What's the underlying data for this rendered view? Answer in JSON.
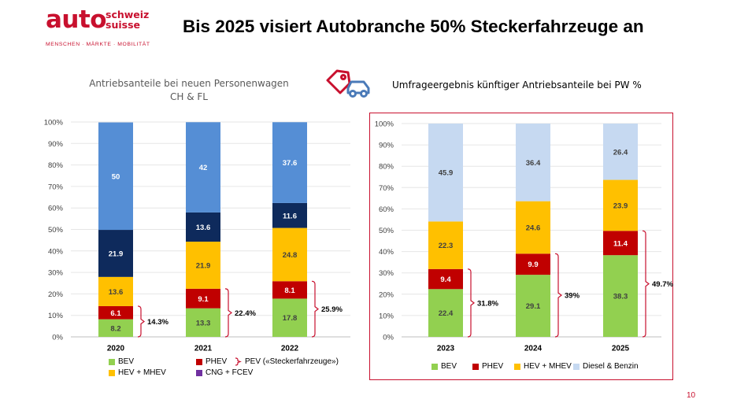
{
  "header": {
    "logo_main": "auto",
    "logo_line1": "schweiz",
    "logo_line2": "suisse",
    "logo_tagline": "MENSCHEN · MÄRKTE · MOBILITÄT",
    "title": "Bis 2025 visiert Autobranche 50% Steckerfahrzeuge an"
  },
  "left_chart_title_line1": "Antriebsanteile bei neuen Personenwagen",
  "left_chart_title_line2": "CH & FL",
  "right_chart_title": "Umfrageergebnis künftiger Antriebsanteile bei PW %",
  "page_number": "10",
  "colors": {
    "BEV": "#92d050",
    "PHEV": "#c00000",
    "HEV + MHEV": "#ffc000",
    "CNG + FCEV": "#7030a0",
    "Diesel & Benzin left": "#558ed5",
    "Diesel & Benzin right": "#c6d9f1",
    "dark_segment": "#0e2a5c",
    "bracket": "#c8102e",
    "frame": "#c8102e"
  },
  "icon": "tag-car-icon",
  "chart_data": [
    {
      "type": "bar",
      "stacked": true,
      "categories": [
        "2020",
        "2021",
        "2022"
      ],
      "series": [
        {
          "name": "BEV",
          "values": [
            8.2,
            13.3,
            17.8
          ]
        },
        {
          "name": "PHEV",
          "values": [
            6.1,
            9.1,
            8.1
          ]
        },
        {
          "name": "HEV + MHEV",
          "values": [
            13.6,
            21.9,
            24.8
          ]
        },
        {
          "name": "CNG + FCEV",
          "values": [
            21.9,
            13.6,
            11.6
          ]
        },
        {
          "values": [
            50,
            42,
            37.6
          ]
        }
      ],
      "segment_labels": [
        [
          "8.2",
          "6.1",
          "13.6",
          "21.9",
          "50"
        ],
        [
          "13.3",
          "9.1",
          "21.9",
          "13.6",
          "42"
        ],
        [
          "17.8",
          "8.1",
          "24.8",
          "11.6",
          "37.6"
        ]
      ],
      "pev_totals": [
        "14.3%",
        "22.4%",
        "25.9%"
      ],
      "yticks": [
        "0%",
        "10%",
        "20%",
        "30%",
        "40%",
        "50%",
        "60%",
        "70%",
        "80%",
        "90%",
        "100%"
      ],
      "ylim": [
        0,
        100
      ],
      "legend": [
        {
          "name": "BEV",
          "color": "#92d050"
        },
        {
          "name": "PHEV",
          "color": "#c00000"
        },
        {
          "name": "PEV («Steckerfahrzeuge»)",
          "marker": "bracket"
        },
        {
          "name": "HEV + MHEV",
          "color": "#ffc000"
        },
        {
          "name": "CNG + FCEV",
          "color": "#7030a0"
        }
      ]
    },
    {
      "type": "bar",
      "stacked": true,
      "categories": [
        "2023",
        "2024",
        "2025"
      ],
      "series": [
        {
          "name": "BEV",
          "values": [
            22.4,
            29.1,
            38.3
          ]
        },
        {
          "name": "PHEV",
          "values": [
            9.4,
            9.9,
            11.4
          ]
        },
        {
          "name": "HEV + MHEV",
          "values": [
            22.3,
            24.6,
            23.9
          ]
        },
        {
          "name": "Diesel & Benzin",
          "values": [
            45.9,
            36.4,
            26.4
          ]
        }
      ],
      "segment_labels": [
        [
          "22.4",
          "9.4",
          "22.3",
          "45.9"
        ],
        [
          "29.1",
          "9.9",
          "24.6",
          "36.4"
        ],
        [
          "38.3",
          "11.4",
          "23.9",
          "26.4"
        ]
      ],
      "pev_totals": [
        "31.8%",
        "39%",
        "49.7%"
      ],
      "yticks": [
        "0%",
        "10%",
        "20%",
        "30%",
        "40%",
        "50%",
        "60%",
        "70%",
        "80%",
        "90%",
        "100%"
      ],
      "ylim": [
        0,
        100
      ],
      "legend": [
        {
          "name": "BEV",
          "color": "#92d050"
        },
        {
          "name": "PHEV",
          "color": "#c00000"
        },
        {
          "name": "HEV + MHEV",
          "color": "#ffc000"
        },
        {
          "name": "Diesel & Benzin",
          "color": "#c6d9f1"
        }
      ]
    }
  ]
}
